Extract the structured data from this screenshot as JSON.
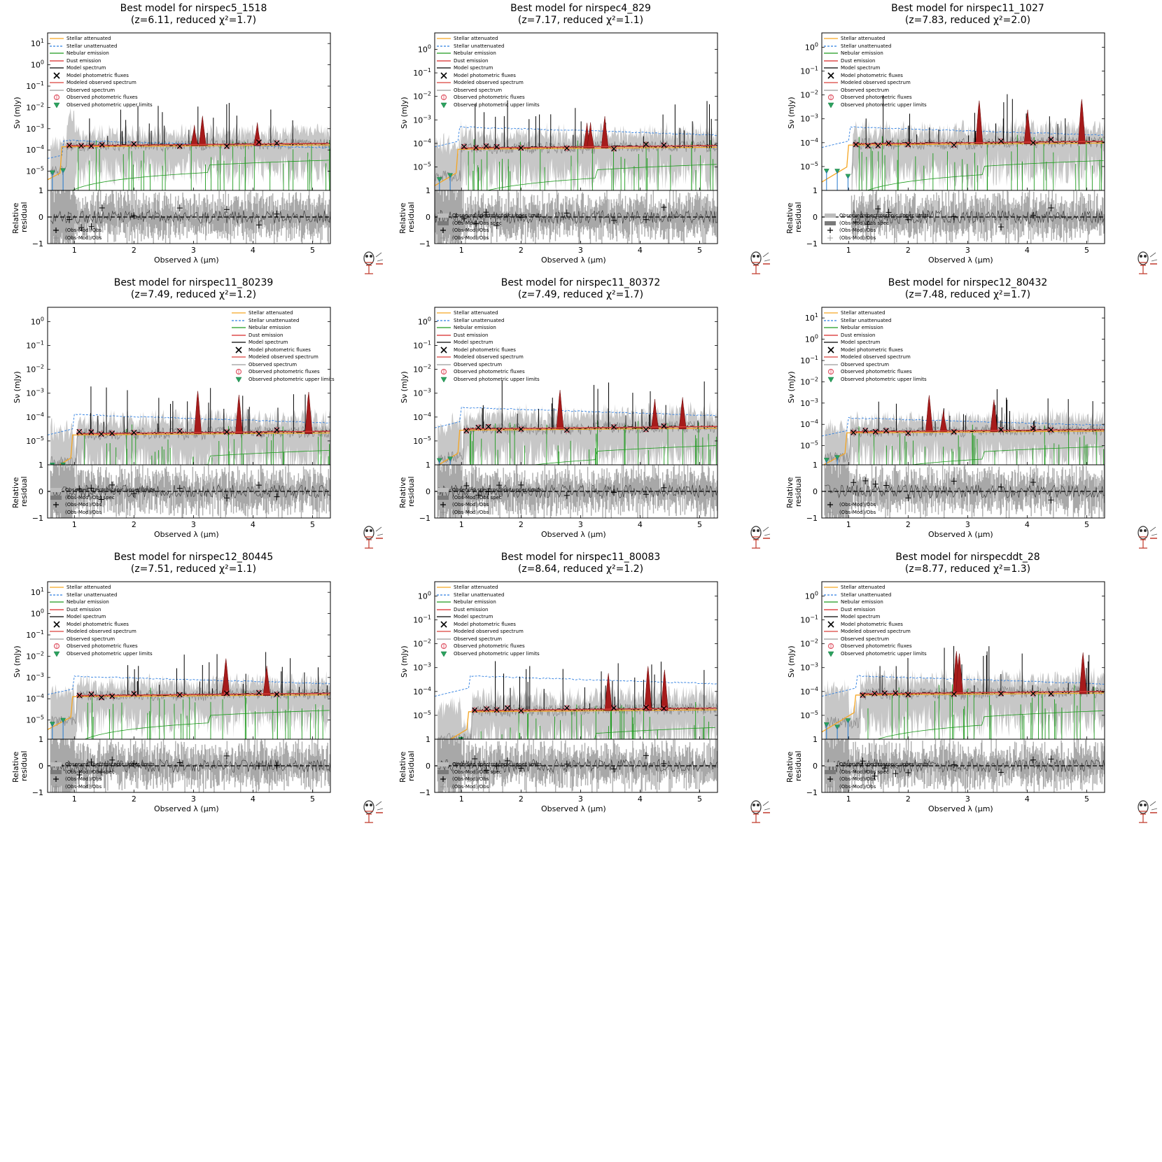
{
  "legend_labels": {
    "stellar_att": "Stellar attenuated",
    "stellar_unatt": "Stellar unattenuated",
    "nebular": "Nebular emission",
    "dust": "Dust emission",
    "model_spec": "Model spectrum",
    "model_phot": "Model photometric fluxes",
    "modeled_obs_spec": "Modeled observed spectrum",
    "obs_spec": "Observed spectrum",
    "obs_phot": "Observed photometric fluxes",
    "obs_upper": "Observed photometric upper limits"
  },
  "residual_legend": {
    "spec_upper": "Observed spectroscopic upper limits",
    "spec_resid": "(Obs-Mod)/Obs spec",
    "phot_resid": "(Obs-Mod)/Obs",
    "phot_resid2": "(Obs-Mod)/Obs"
  },
  "axis_text": {
    "ylabel_main": "Sν (mJy)",
    "ylabel_res_1": "Relative",
    "ylabel_res_2": "residual",
    "xlabel": "Observed λ (μm)"
  },
  "colors": {
    "stellar_att": "#f5a623",
    "stellar_unatt": "#2f7fe0",
    "nebular": "#1d9a1d",
    "dust": "#d62728",
    "model_spec": "#000000",
    "modeled_obs_spec": "#d9403a",
    "obs_spec": "#8c8c8c",
    "obs_phot": "#e05a6a",
    "obs_upper": "#2ca25f"
  },
  "chart_data": [
    {
      "type": "line",
      "title_line1": "Best model for nirspec5_1518",
      "title_line2": "(z=6.11, reduced χ²=1.7)",
      "z": 6.11,
      "chi2": 1.7,
      "xlim": [
        0.55,
        5.3
      ],
      "ylim_log": [
        -5.9,
        1.5
      ],
      "yticks_exp": [
        1,
        0,
        -1,
        -2,
        -3,
        -4,
        -5
      ],
      "xticks": [
        "1",
        "2",
        "3",
        "4",
        "5"
      ],
      "plateau": -3.8,
      "unatt_offset": 0.1,
      "res_ylim": [
        -1,
        1
      ],
      "res_yticks": [
        "1",
        "0",
        "-1"
      ],
      "res_legend_show": [
        "phot_resid",
        "phot_resid2"
      ],
      "spec_start": 0.6,
      "legend_position": "upper-left"
    },
    {
      "type": "line",
      "title_line1": "Best model for nirspec4_829",
      "title_line2": "(z=7.17, reduced χ²=1.1)",
      "z": 7.17,
      "chi2": 1.1,
      "xlim": [
        0.55,
        5.3
      ],
      "ylim_log": [
        -6.0,
        0.7
      ],
      "yticks_exp": [
        0,
        -1,
        -2,
        -3,
        -4,
        -5
      ],
      "xticks": [
        "1",
        "2",
        "3",
        "4",
        "5"
      ],
      "plateau": -4.2,
      "unatt_offset": 0.75,
      "res_ylim": [
        -1,
        1
      ],
      "res_yticks": [
        "1",
        "0",
        "-1"
      ],
      "res_legend_show": [
        "spec_upper",
        "spec_resid",
        "phot_resid",
        "phot_resid2"
      ],
      "spec_start": 0.55,
      "legend_position": "upper-left"
    },
    {
      "type": "line",
      "title_line1": "Best model for nirspec11_1027",
      "title_line2": "(z=7.83, reduced χ²=2.0)",
      "z": 7.83,
      "chi2": 2.0,
      "xlim": [
        0.55,
        5.3
      ],
      "ylim_log": [
        -6.0,
        0.6
      ],
      "yticks_exp": [
        0,
        -1,
        -2,
        -3,
        -4,
        -5
      ],
      "xticks": [
        "1",
        "2",
        "3",
        "4",
        "5"
      ],
      "plateau": -4.05,
      "unatt_offset": 0.55,
      "res_ylim": [
        -1,
        1
      ],
      "res_yticks": [
        "1",
        "0",
        "-1"
      ],
      "res_legend_show": [
        "spec_upper",
        "spec_resid",
        "phot_resid",
        "phot_resid2"
      ],
      "spec_start": 1.05,
      "legend_position": "upper-left"
    },
    {
      "type": "line",
      "title_line1": "Best model for nirspec11_80239",
      "title_line2": "(z=7.49, reduced χ²=1.2)",
      "z": 7.49,
      "chi2": 1.2,
      "xlim": [
        0.55,
        5.3
      ],
      "ylim_log": [
        -6.0,
        0.6
      ],
      "yticks_exp": [
        0,
        -1,
        -2,
        -3,
        -4,
        -5
      ],
      "xticks": [
        "1",
        "2",
        "3",
        "4",
        "5"
      ],
      "plateau": -4.7,
      "unatt_offset": 0.65,
      "res_ylim": [
        -1,
        1
      ],
      "res_yticks": [
        "1",
        "0",
        "-1"
      ],
      "res_legend_show": [
        "spec_upper",
        "spec_resid",
        "phot_resid",
        "phot_resid2"
      ],
      "spec_start": 0.6,
      "legend_position": "upper-right"
    },
    {
      "type": "line",
      "title_line1": "Best model for nirspec11_80372",
      "title_line2": "(z=7.49, reduced χ²=1.7)",
      "z": 7.49,
      "chi2": 1.7,
      "xlim": [
        0.55,
        5.3
      ],
      "ylim_log": [
        -6.0,
        0.6
      ],
      "yticks_exp": [
        0,
        -1,
        -2,
        -3,
        -4,
        -5
      ],
      "xticks": [
        "1",
        "2",
        "3",
        "4",
        "5"
      ],
      "plateau": -4.5,
      "unatt_offset": 0.75,
      "res_ylim": [
        -1,
        1
      ],
      "res_yticks": [
        "1",
        "0",
        "-1"
      ],
      "res_legend_show": [
        "spec_upper",
        "spec_resid",
        "phot_resid",
        "phot_resid2"
      ],
      "spec_start": 0.6,
      "legend_position": "upper-left"
    },
    {
      "type": "line",
      "title_line1": "Best model for nirspec12_80432",
      "title_line2": "(z=7.48, reduced χ²=1.7)",
      "z": 7.48,
      "chi2": 1.7,
      "xlim": [
        0.55,
        5.3
      ],
      "ylim_log": [
        -5.9,
        1.5
      ],
      "yticks_exp": [
        1,
        0,
        -1,
        -2,
        -3,
        -4,
        -5
      ],
      "xticks": [
        "1",
        "2",
        "3",
        "4",
        "5"
      ],
      "plateau": -4.35,
      "unatt_offset": 0.5,
      "res_ylim": [
        -1,
        1
      ],
      "res_yticks": [
        "1",
        "0",
        "-1"
      ],
      "res_legend_show": [
        "phot_resid",
        "phot_resid2"
      ],
      "spec_start": 0.6,
      "legend_position": "upper-left"
    },
    {
      "type": "line",
      "title_line1": "Best model for nirspec12_80445",
      "title_line2": "(z=7.51, reduced χ²=1.1)",
      "z": 7.51,
      "chi2": 1.1,
      "xlim": [
        0.55,
        5.3
      ],
      "ylim_log": [
        -5.9,
        1.5
      ],
      "yticks_exp": [
        1,
        0,
        -1,
        -2,
        -3,
        -4,
        -5
      ],
      "xticks": [
        "1",
        "2",
        "3",
        "4",
        "5"
      ],
      "plateau": -3.85,
      "unatt_offset": 0.75,
      "res_ylim": [
        -1,
        1
      ],
      "res_yticks": [
        "1",
        "0",
        "-1"
      ],
      "res_legend_show": [
        "spec_upper",
        "spec_resid",
        "phot_resid",
        "phot_resid2"
      ],
      "spec_start": 0.6,
      "legend_position": "upper-left"
    },
    {
      "type": "line",
      "title_line1": "Best model for nirspec11_80083",
      "title_line2": "(z=8.64, reduced χ²=1.2)",
      "z": 8.64,
      "chi2": 1.2,
      "xlim": [
        0.55,
        5.3
      ],
      "ylim_log": [
        -6.0,
        0.6
      ],
      "yticks_exp": [
        0,
        -1,
        -2,
        -3,
        -4,
        -5
      ],
      "xticks": [
        "1",
        "2",
        "3",
        "4",
        "5"
      ],
      "plateau": -4.8,
      "unatt_offset": 1.3,
      "res_ylim": [
        -1,
        1
      ],
      "res_yticks": [
        "1",
        "0",
        "-1"
      ],
      "res_legend_show": [
        "spec_upper",
        "spec_resid",
        "phot_resid",
        "phot_resid2"
      ],
      "spec_start": 0.6,
      "legend_position": "upper-left"
    },
    {
      "type": "line",
      "title_line1": "Best model for nirspecddt_28",
      "title_line2": "(z=8.77, reduced χ²=1.3)",
      "z": 8.77,
      "chi2": 1.3,
      "xlim": [
        0.55,
        5.3
      ],
      "ylim_log": [
        -6.0,
        0.6
      ],
      "yticks_exp": [
        0,
        -1,
        -2,
        -3,
        -4,
        -5
      ],
      "xticks": [
        "1",
        "2",
        "3",
        "4",
        "5"
      ],
      "plateau": -4.1,
      "unatt_offset": 0.6,
      "res_ylim": [
        -1,
        1
      ],
      "res_yticks": [
        "1",
        "0",
        "-1"
      ],
      "res_legend_show": [
        "spec_upper",
        "spec_resid",
        "phot_resid",
        "phot_resid2"
      ],
      "spec_start": 0.6,
      "legend_position": "upper-left"
    }
  ]
}
